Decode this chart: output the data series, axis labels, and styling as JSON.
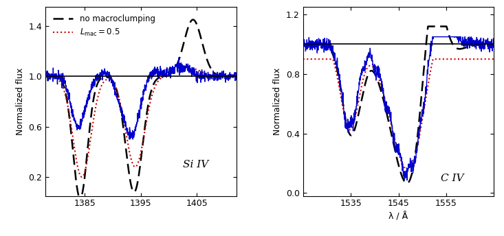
{
  "siiv": {
    "xlim": [
      1378,
      1412
    ],
    "ylim": [
      0.05,
      1.55
    ],
    "yticks": [
      0.2,
      0.6,
      1.0,
      1.4
    ],
    "xticks": [
      1385,
      1395,
      1405
    ],
    "ylabel": "Normalized flux",
    "xlabel": "",
    "label": "Si IV",
    "hline_y": 1.0
  },
  "civ": {
    "xlim": [
      1525,
      1565
    ],
    "ylim": [
      -0.02,
      1.25
    ],
    "yticks": [
      0.0,
      0.4,
      0.8,
      1.2
    ],
    "xticks": [
      1535,
      1545,
      1555
    ],
    "ylabel": "Normalized flux",
    "xlabel": "λ / Å",
    "label": "C IV",
    "hline_y": 1.0
  },
  "legend": {
    "no_macro": "no macroclumping",
    "lmac": "$L_{\\rm mac} = 0.5$"
  },
  "colors": {
    "blue": "#0000cc",
    "red": "#cc0000",
    "black": "#000000"
  },
  "lw_black": 1.8,
  "lw_red": 1.5,
  "lw_blue": 1.0
}
